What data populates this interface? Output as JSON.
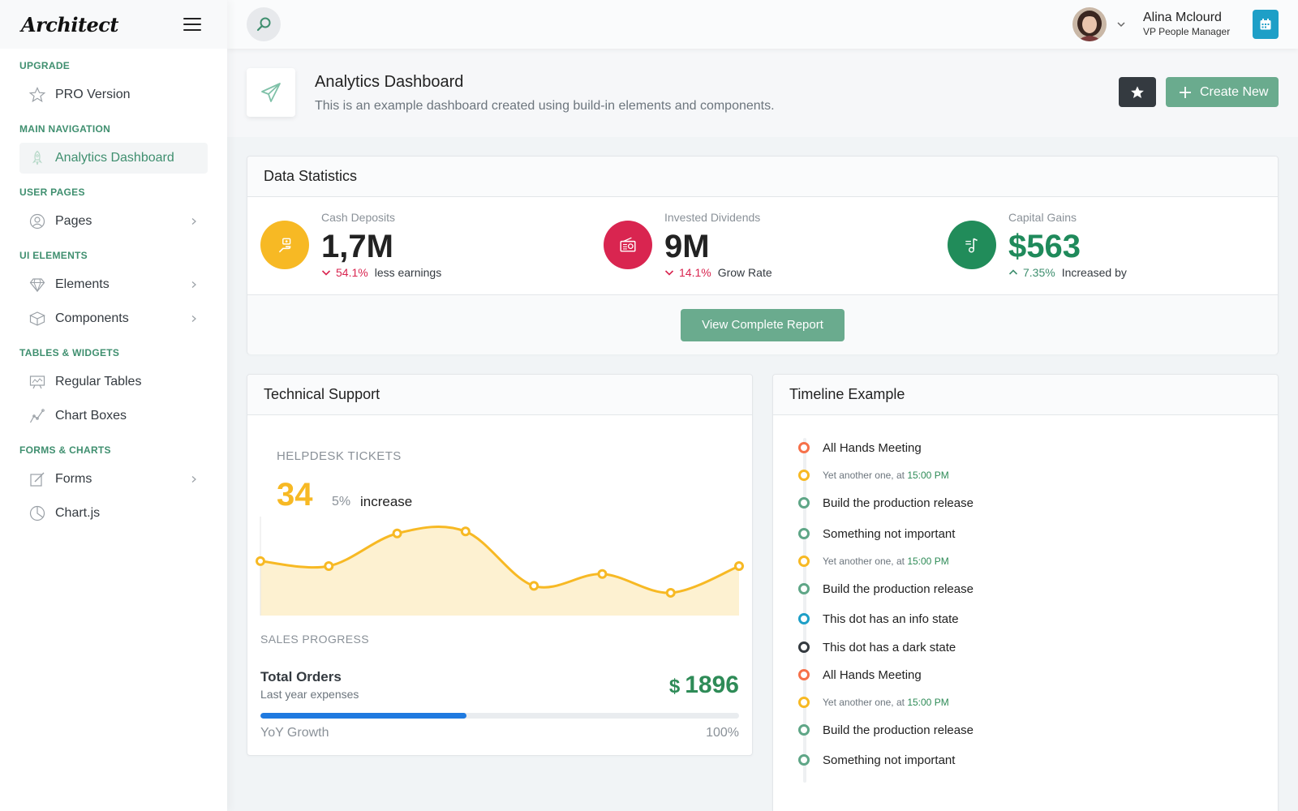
{
  "sidebar": {
    "logo": "Architect",
    "sections": [
      {
        "heading": "UPGRADE",
        "items": [
          {
            "label": "PRO Version",
            "icon": "star-outline-icon",
            "chevron": false,
            "active": false
          }
        ]
      },
      {
        "heading": "MAIN NAVIGATION",
        "items": [
          {
            "label": "Analytics Dashboard",
            "icon": "rocket-icon",
            "chevron": false,
            "active": true
          }
        ]
      },
      {
        "heading": "USER PAGES",
        "items": [
          {
            "label": "Pages",
            "icon": "user-circle-icon",
            "chevron": true,
            "active": false
          }
        ]
      },
      {
        "heading": "UI ELEMENTS",
        "items": [
          {
            "label": "Elements",
            "icon": "diamond-icon",
            "chevron": true,
            "active": false
          },
          {
            "label": "Components",
            "icon": "box-icon",
            "chevron": true,
            "active": false
          }
        ]
      },
      {
        "heading": "TABLES & WIDGETS",
        "items": [
          {
            "label": "Regular Tables",
            "icon": "table-icon",
            "chevron": false,
            "active": false
          },
          {
            "label": "Chart Boxes",
            "icon": "graph-icon",
            "chevron": false,
            "active": false
          }
        ]
      },
      {
        "heading": "FORMS & CHARTS",
        "items": [
          {
            "label": "Forms",
            "icon": "note-icon",
            "chevron": true,
            "active": false
          },
          {
            "label": "Chart.js",
            "icon": "pie-icon",
            "chevron": false,
            "active": false
          }
        ]
      }
    ]
  },
  "header": {
    "user_name": "Alina Mclourd",
    "user_role": "VP People Manager"
  },
  "page_title": {
    "heading": "Analytics Dashboard",
    "subheading": "This is an example dashboard created using build-in elements and components.",
    "create_label": "Create New"
  },
  "stats": {
    "title": "Data Statistics",
    "items": [
      {
        "label": "Cash Deposits",
        "value": "1,7M",
        "direction": "down",
        "pct": "54.1%",
        "text": "less earnings",
        "color": "#f7b924",
        "pct_color": "#d92550",
        "value_color": "#222222",
        "icon": "hand-money-icon"
      },
      {
        "label": "Invested Dividends",
        "value": "9M",
        "direction": "down",
        "pct": "14.1%",
        "text": "Grow Rate",
        "color": "#d92550",
        "pct_color": "#d92550",
        "value_color": "#222222",
        "icon": "radio-icon"
      },
      {
        "label": "Capital Gains",
        "value": "$563",
        "direction": "up",
        "pct": "7.35%",
        "text": "Increased by",
        "color": "#218c5a",
        "pct_color": "#3f8f6f",
        "value_color": "#1f8a5b",
        "icon": "music-note-icon"
      }
    ],
    "report_label": "View Complete Report"
  },
  "support": {
    "title": "Technical Support",
    "helpdesk_label": "HELPDESK TICKETS",
    "tickets_value": "34",
    "tickets_pct": "5%",
    "tickets_text": "increase",
    "sales_label": "SALES PROGRESS",
    "orders_title": "Total Orders",
    "orders_sub": "Last year expenses",
    "orders_currency": "$",
    "orders_amount": "1896",
    "progress_fraction": 0.43,
    "yoy_label": "YoY Growth",
    "yoy_value": "100%"
  },
  "chart_data": {
    "type": "area",
    "title": "",
    "xlabel": "",
    "ylabel": "",
    "x": [
      1,
      2,
      3,
      4,
      5,
      6,
      7,
      8
    ],
    "series": [
      {
        "values": [
          55,
          50,
          83,
          85,
          30,
          42,
          23,
          50
        ]
      }
    ],
    "ylim": [
      0,
      100
    ],
    "grid": false,
    "color": "#f7b924"
  },
  "timeline": {
    "title": "Timeline Example",
    "items": [
      {
        "kind": "title",
        "text": "All Hands Meeting",
        "color": "#f6714a"
      },
      {
        "kind": "sub",
        "text": "Yet another one, at",
        "time": "15:00 PM",
        "color": "#f7b924"
      },
      {
        "kind": "title",
        "text": "Build the production release",
        "color": "#5fa687"
      },
      {
        "kind": "title",
        "text": "Something not important",
        "color": "#5fa687"
      },
      {
        "kind": "sub",
        "text": "Yet another one, at",
        "time": "15:00 PM",
        "color": "#f7b924"
      },
      {
        "kind": "title",
        "text": "Build the production release",
        "color": "#5fa687"
      },
      {
        "kind": "title",
        "text": "This dot has an info state",
        "color": "#1e9fc7"
      },
      {
        "kind": "title",
        "text": "This dot has a dark state",
        "color": "#343a40"
      },
      {
        "kind": "title",
        "text": "All Hands Meeting",
        "color": "#f6714a"
      },
      {
        "kind": "sub",
        "text": "Yet another one, at",
        "time": "15:00 PM",
        "color": "#f7b924"
      },
      {
        "kind": "title",
        "text": "Build the production release",
        "color": "#5fa687"
      },
      {
        "kind": "title",
        "text": "Something not important",
        "color": "#5fa687"
      }
    ]
  }
}
